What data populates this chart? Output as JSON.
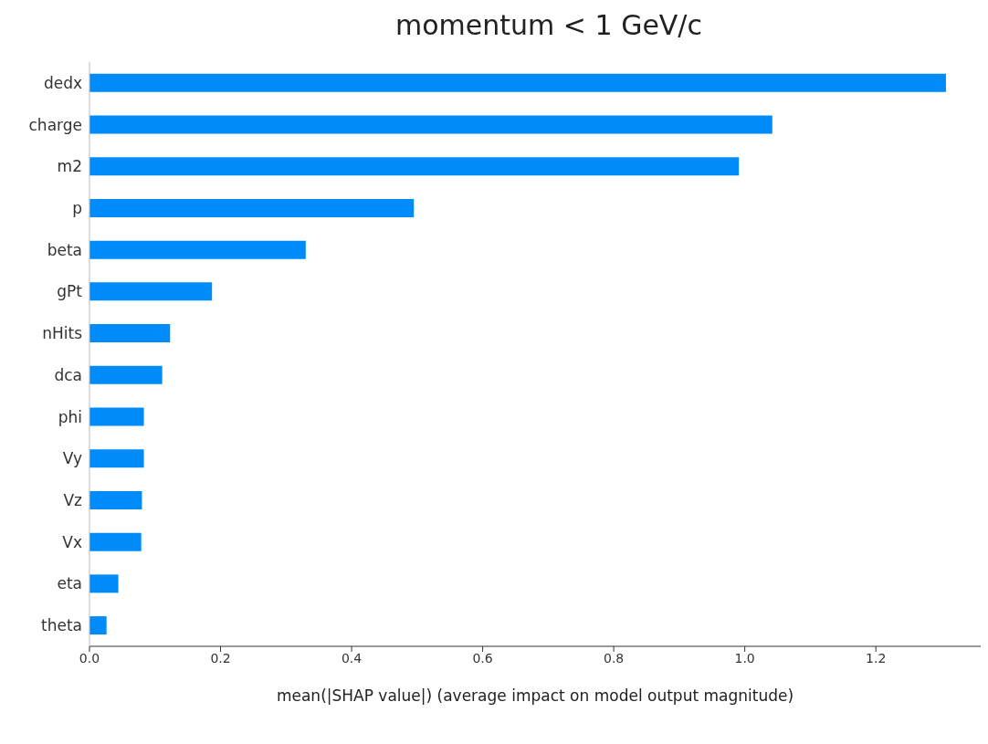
{
  "chart_data": {
    "type": "bar",
    "orientation": "horizontal",
    "title": "momentum < 1 GeV/c",
    "xlabel": "mean(|SHAP value|) (average impact on model output magnitude)",
    "categories": [
      "dedx",
      "charge",
      "m2",
      "p",
      "beta",
      "gPt",
      "nHits",
      "dca",
      "phi",
      "Vy",
      "Vz",
      "Vx",
      "eta",
      "theta"
    ],
    "values": [
      1.307,
      1.042,
      0.991,
      0.495,
      0.33,
      0.187,
      0.123,
      0.111,
      0.083,
      0.083,
      0.08,
      0.079,
      0.044,
      0.026
    ],
    "color": "#008bfb",
    "xlim": [
      0,
      1.36
    ],
    "xticks": [
      {
        "value": 0,
        "label": "0.0"
      },
      {
        "value": 0.2,
        "label": "0.2"
      },
      {
        "value": 0.4,
        "label": "0.4"
      },
      {
        "value": 0.6,
        "label": "0.6"
      },
      {
        "value": 0.8,
        "label": "0.8"
      },
      {
        "value": 1.0,
        "label": "1.0"
      },
      {
        "value": 1.2,
        "label": "1.2"
      }
    ],
    "grid": false,
    "legend": false
  }
}
